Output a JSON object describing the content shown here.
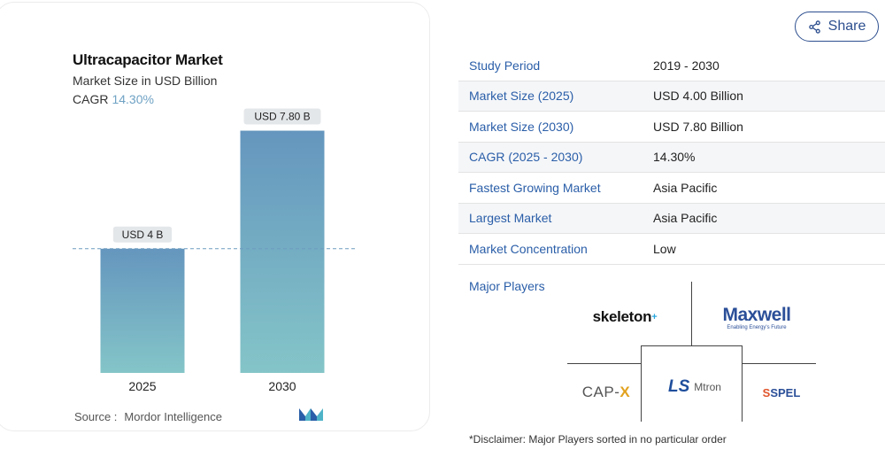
{
  "chart_data": {
    "type": "bar",
    "title": "Ultracapacitor Market",
    "subtitle": "Market Size in USD Billion",
    "cagr_label": "CAGR",
    "cagr_value": "14.30%",
    "categories": [
      "2025",
      "2030"
    ],
    "values": [
      4.0,
      7.8
    ],
    "data_labels": [
      "USD 4 B",
      "USD 7.80 B"
    ],
    "ylim": [
      0,
      8.3
    ],
    "grid": false,
    "reference_line_value": 4.0,
    "colors": {
      "bar_top": "#6596be",
      "bar_bottom": "#84c5c8",
      "label_bg": "#e4e7ea",
      "reference_line": "#6f9cbf"
    },
    "source_label": "Source :",
    "source": "Mordor Intelligence"
  },
  "share": {
    "label": "Share",
    "icon": "share-icon"
  },
  "stats": [
    {
      "label": "Study Period",
      "value": "2019 - 2030"
    },
    {
      "label": "Market Size (2025)",
      "value": "USD 4.00 Billion"
    },
    {
      "label": "Market Size (2030)",
      "value": "USD 7.80 Billion"
    },
    {
      "label": "CAGR (2025 - 2030)",
      "value": "14.30%"
    },
    {
      "label": "Fastest Growing Market",
      "value": "Asia Pacific"
    },
    {
      "label": "Largest Market",
      "value": "Asia Pacific"
    },
    {
      "label": "Market Concentration",
      "value": "Low"
    }
  ],
  "players": {
    "label": "Major Players",
    "logos": {
      "skeleton": "skeleton",
      "maxwell": "Maxwell",
      "maxwell_tag": "Enabling Energy's Future",
      "capx_prefix": "CAP-",
      "capx_x": "X",
      "ls": "LS",
      "mtron": "Mtron",
      "spel_s": "S",
      "spel_rest": "SPEL"
    }
  },
  "disclaimer": "*Disclaimer: Major Players sorted in no particular order",
  "colors": {
    "accent_blue": "#2a5ea8",
    "share_border": "#2d4f8f"
  }
}
